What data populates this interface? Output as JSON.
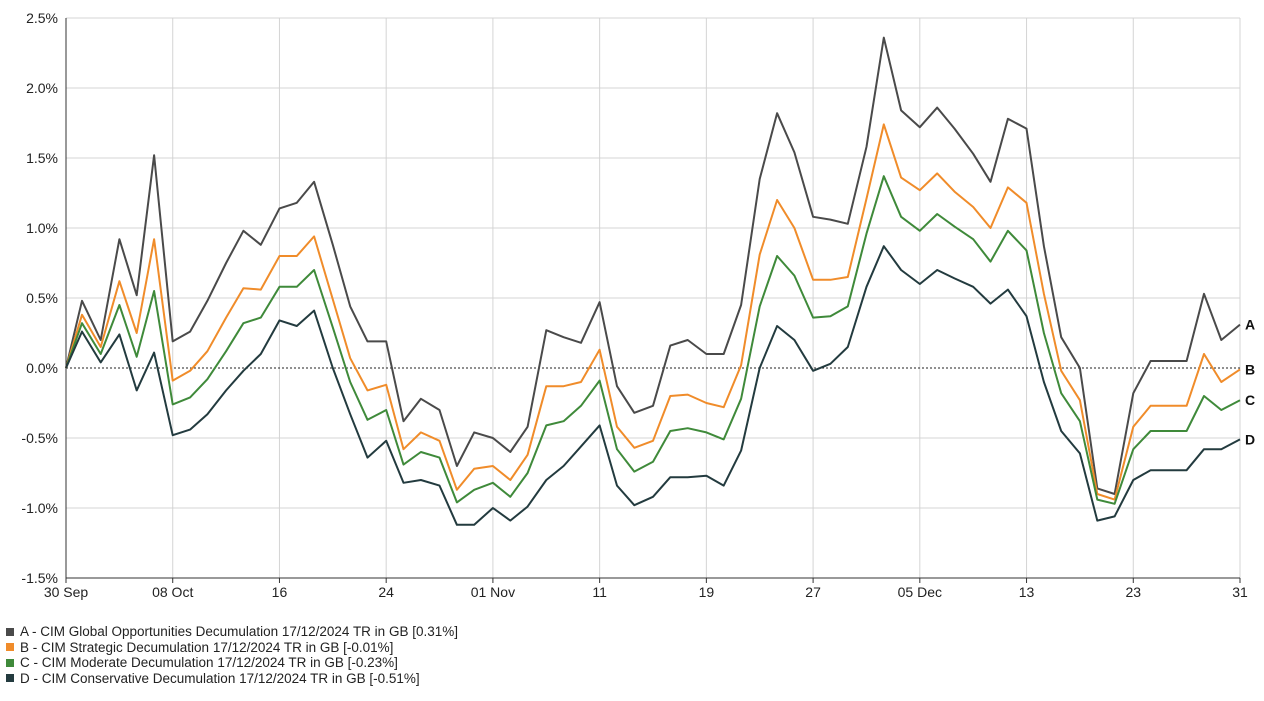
{
  "chart_data": {
    "type": "line",
    "title": "",
    "xlabel": "",
    "ylabel": "",
    "ylim": [
      -1.5,
      2.5
    ],
    "yticks": [
      -1.5,
      -1.0,
      -0.5,
      0.0,
      0.5,
      1.0,
      1.5,
      2.0,
      2.5
    ],
    "ytick_labels": [
      "-1.5%",
      "-1.0%",
      "-0.5%",
      "0.0%",
      "0.5%",
      "1.0%",
      "1.5%",
      "2.0%",
      "2.5%"
    ],
    "xticks": [
      {
        "label": "30 Sep",
        "day": 0
      },
      {
        "label": "08 Oct",
        "day": 8
      },
      {
        "label": "16",
        "day": 16
      },
      {
        "label": "24",
        "day": 24
      },
      {
        "label": "01 Nov",
        "day": 32
      },
      {
        "label": "11",
        "day": 40
      },
      {
        "label": "19",
        "day": 48
      },
      {
        "label": "27",
        "day": 56
      },
      {
        "label": "05 Dec",
        "day": 64
      },
      {
        "label": "13",
        "day": 72
      },
      {
        "label": "23",
        "day": 80
      },
      {
        "label": "31",
        "day": 88
      }
    ],
    "grid": true,
    "x": [
      0,
      1.2,
      2.6,
      4,
      5.3,
      6.6,
      8,
      9.3,
      10.6,
      12,
      13.3,
      14.6,
      16,
      17.3,
      18.6,
      20,
      21.3,
      22.6,
      24,
      25.3,
      26.6,
      28,
      29.3,
      30.6,
      32,
      33.3,
      34.6,
      36,
      37.3,
      38.6,
      40,
      41.3,
      42.6,
      44,
      45.3,
      46.6,
      48,
      49.3,
      50.6,
      52,
      53.3,
      54.6,
      56,
      57.3,
      58.6,
      60,
      61.3,
      62.6,
      64,
      65.3,
      66.6,
      68,
      69.3,
      70.6,
      72,
      73.3,
      74.6,
      76,
      77.3,
      78.6,
      80,
      81.3,
      82.6,
      84,
      85.3,
      86.6,
      88
    ],
    "series": [
      {
        "name": "A - CIM Global Opportunities Decumulation 17/12/2024 TR in GB [0.31%]",
        "end_label": "A",
        "color": "#4a4a4a",
        "values": [
          0,
          0.48,
          0.2,
          0.92,
          0.52,
          1.52,
          0.19,
          0.26,
          0.48,
          0.75,
          0.98,
          0.88,
          1.14,
          1.18,
          1.33,
          0.88,
          0.44,
          0.19,
          0.19,
          -0.38,
          -0.22,
          -0.3,
          -0.7,
          -0.46,
          -0.5,
          -0.6,
          -0.42,
          0.27,
          0.22,
          0.18,
          0.47,
          -0.13,
          -0.32,
          -0.27,
          0.16,
          0.2,
          0.1,
          0.1,
          0.45,
          1.35,
          1.82,
          1.54,
          1.08,
          1.06,
          1.03,
          1.58,
          2.36,
          1.84,
          1.72,
          1.86,
          1.71,
          1.53,
          1.33,
          1.78,
          1.71,
          0.87,
          0.22,
          0.0,
          -0.86,
          -0.9,
          -0.18,
          0.05,
          0.05,
          0.05,
          0.53,
          0.2,
          0.31
        ]
      },
      {
        "name": "B - CIM Strategic Decumulation 17/12/2024 TR in GB [-0.01%]",
        "end_label": "B",
        "color": "#f08c2a",
        "values": [
          0,
          0.38,
          0.15,
          0.62,
          0.25,
          0.92,
          -0.09,
          -0.02,
          0.12,
          0.36,
          0.57,
          0.56,
          0.8,
          0.8,
          0.94,
          0.49,
          0.07,
          -0.16,
          -0.12,
          -0.58,
          -0.46,
          -0.52,
          -0.87,
          -0.72,
          -0.7,
          -0.8,
          -0.62,
          -0.13,
          -0.13,
          -0.1,
          0.13,
          -0.42,
          -0.57,
          -0.52,
          -0.2,
          -0.19,
          -0.25,
          -0.28,
          0.02,
          0.81,
          1.2,
          1.0,
          0.63,
          0.63,
          0.65,
          1.21,
          1.74,
          1.36,
          1.27,
          1.39,
          1.26,
          1.15,
          1.0,
          1.29,
          1.18,
          0.53,
          -0.02,
          -0.23,
          -0.9,
          -0.94,
          -0.42,
          -0.27,
          -0.27,
          -0.27,
          0.1,
          -0.1,
          -0.01
        ]
      },
      {
        "name": "C - CIM Moderate Decumulation 17/12/2024 TR in GB [-0.23%]",
        "end_label": "C",
        "color": "#3f8a3a",
        "values": [
          0,
          0.32,
          0.1,
          0.45,
          0.08,
          0.55,
          -0.26,
          -0.21,
          -0.08,
          0.12,
          0.32,
          0.36,
          0.58,
          0.58,
          0.7,
          0.29,
          -0.1,
          -0.37,
          -0.3,
          -0.69,
          -0.6,
          -0.64,
          -0.96,
          -0.87,
          -0.82,
          -0.92,
          -0.75,
          -0.41,
          -0.38,
          -0.27,
          -0.09,
          -0.58,
          -0.74,
          -0.67,
          -0.45,
          -0.43,
          -0.46,
          -0.51,
          -0.22,
          0.44,
          0.8,
          0.66,
          0.36,
          0.37,
          0.44,
          0.96,
          1.37,
          1.08,
          0.98,
          1.1,
          1.01,
          0.92,
          0.76,
          0.98,
          0.84,
          0.25,
          -0.18,
          -0.38,
          -0.94,
          -0.97,
          -0.58,
          -0.45,
          -0.45,
          -0.45,
          -0.2,
          -0.3,
          -0.23
        ]
      },
      {
        "name": "D - CIM Conservative Decumulation 17/12/2024 TR in GB [-0.51%]",
        "end_label": "D",
        "color": "#233b3f",
        "values": [
          0,
          0.26,
          0.04,
          0.24,
          -0.16,
          0.11,
          -0.48,
          -0.44,
          -0.33,
          -0.16,
          -0.02,
          0.1,
          0.34,
          0.3,
          0.41,
          0.0,
          -0.33,
          -0.64,
          -0.52,
          -0.82,
          -0.8,
          -0.84,
          -1.12,
          -1.12,
          -1.0,
          -1.09,
          -0.99,
          -0.8,
          -0.7,
          -0.56,
          -0.41,
          -0.84,
          -0.98,
          -0.92,
          -0.78,
          -0.78,
          -0.77,
          -0.84,
          -0.59,
          0.0,
          0.3,
          0.2,
          -0.02,
          0.03,
          0.15,
          0.58,
          0.87,
          0.7,
          0.6,
          0.7,
          0.64,
          0.58,
          0.46,
          0.56,
          0.37,
          -0.1,
          -0.45,
          -0.61,
          -1.09,
          -1.06,
          -0.8,
          -0.73,
          -0.73,
          -0.73,
          -0.58,
          -0.58,
          -0.51
        ]
      }
    ]
  }
}
